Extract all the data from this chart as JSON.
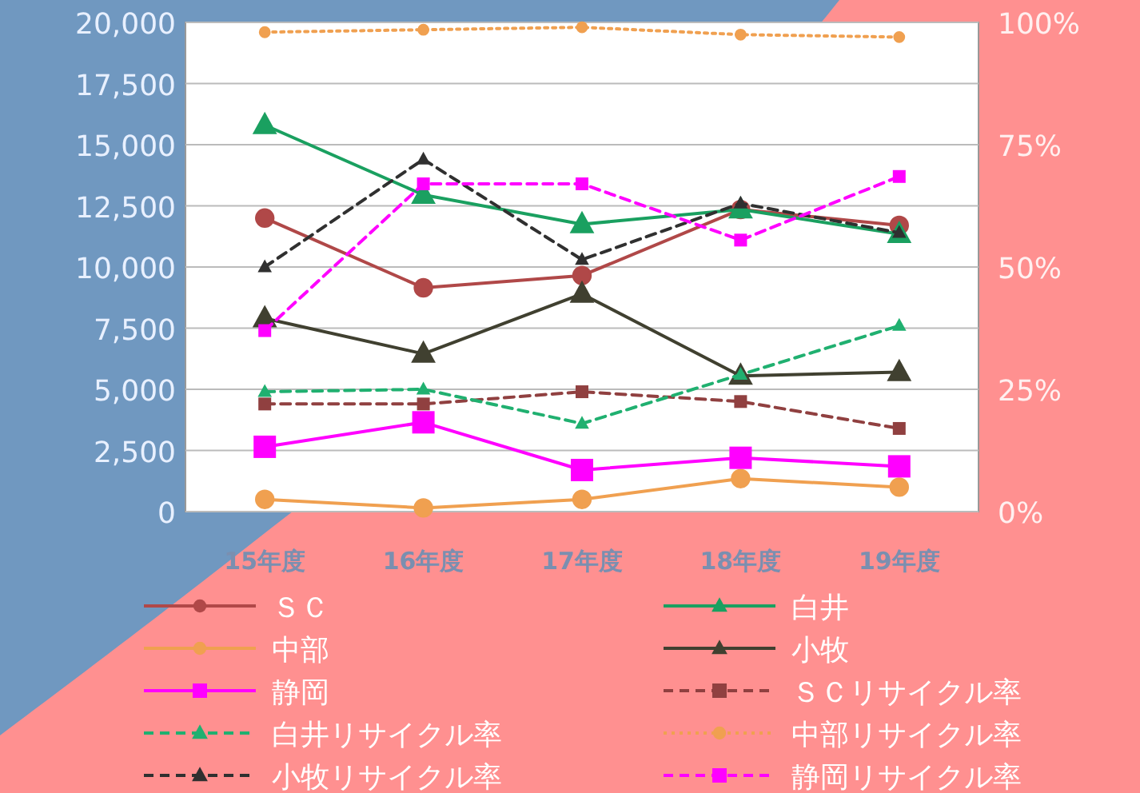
{
  "chart_data": {
    "type": "line",
    "categories": [
      "15年度",
      "16年度",
      "17年度",
      "18年度",
      "19年度"
    ],
    "ylim": [
      0,
      20000
    ],
    "yticks": [
      {
        "value": 0,
        "label": "0"
      },
      {
        "value": 2500,
        "label": "2,500"
      },
      {
        "value": 5000,
        "label": "5,000"
      },
      {
        "value": 7500,
        "label": "7,500"
      },
      {
        "value": 10000,
        "label": "10,000"
      },
      {
        "value": 12500,
        "label": "12,500"
      },
      {
        "value": 15000,
        "label": "15,000"
      },
      {
        "value": 17500,
        "label": "17,500"
      },
      {
        "value": 20000,
        "label": "20,000"
      }
    ],
    "y2lim": [
      0,
      100
    ],
    "y2ticks": [
      {
        "value": 0,
        "label": "0%"
      },
      {
        "value": 25,
        "label": "25%"
      },
      {
        "value": 50,
        "label": "50%"
      },
      {
        "value": 75,
        "label": "75%"
      },
      {
        "value": 100,
        "label": "100%"
      }
    ],
    "grid": "y",
    "legend": "bottom",
    "series": [
      {
        "name": "ＳＣ",
        "color": "#b04848",
        "marker": "circle",
        "line_style": "solid",
        "values": [
          12000,
          9150,
          9650,
          12350,
          11700
        ]
      },
      {
        "name": "白井",
        "color": "#1aa060",
        "marker": "triangle",
        "line_style": "solid",
        "values": [
          15800,
          12950,
          11750,
          12350,
          11350
        ]
      },
      {
        "name": "中部",
        "color": "#f0a050",
        "marker": "circle",
        "line_style": "solid",
        "values": [
          500,
          150,
          500,
          1350,
          1000
        ]
      },
      {
        "name": "小牧",
        "color": "#404030",
        "marker": "triangle",
        "line_style": "solid",
        "values": [
          7900,
          6450,
          8900,
          5550,
          5700
        ]
      },
      {
        "name": "静岡",
        "color": "#ff00ff",
        "marker": "square",
        "line_style": "solid",
        "values": [
          2650,
          3650,
          1700,
          2200,
          1850
        ]
      },
      {
        "name": "ＳＣリサイクル率",
        "color": "#904040",
        "marker": "square",
        "line_style": "dashed",
        "axis": "y2",
        "values": [
          22,
          22,
          24.5,
          22.5,
          17
        ]
      },
      {
        "name": "白井リサイクル率",
        "color": "#20b070",
        "marker": "triangle",
        "line_style": "dashed",
        "axis": "y2",
        "values": [
          24.5,
          25,
          18,
          28,
          38
        ]
      },
      {
        "name": "中部リサイクル率",
        "color": "#f0a050",
        "marker": "circle",
        "line_style": "dotted",
        "axis": "y2",
        "values": [
          98,
          98.5,
          99,
          97.5,
          97
        ]
      },
      {
        "name": "小牧リサイクル率",
        "color": "#303030",
        "marker": "triangle",
        "line_style": "dashed",
        "axis": "y2",
        "values": [
          50,
          72,
          51.5,
          63,
          57
        ]
      },
      {
        "name": "静岡リサイクル率",
        "color": "#ff00ff",
        "marker": "square",
        "line_style": "dashed",
        "axis": "y2",
        "values": [
          37,
          67,
          67,
          55.5,
          68.5
        ]
      }
    ]
  }
}
